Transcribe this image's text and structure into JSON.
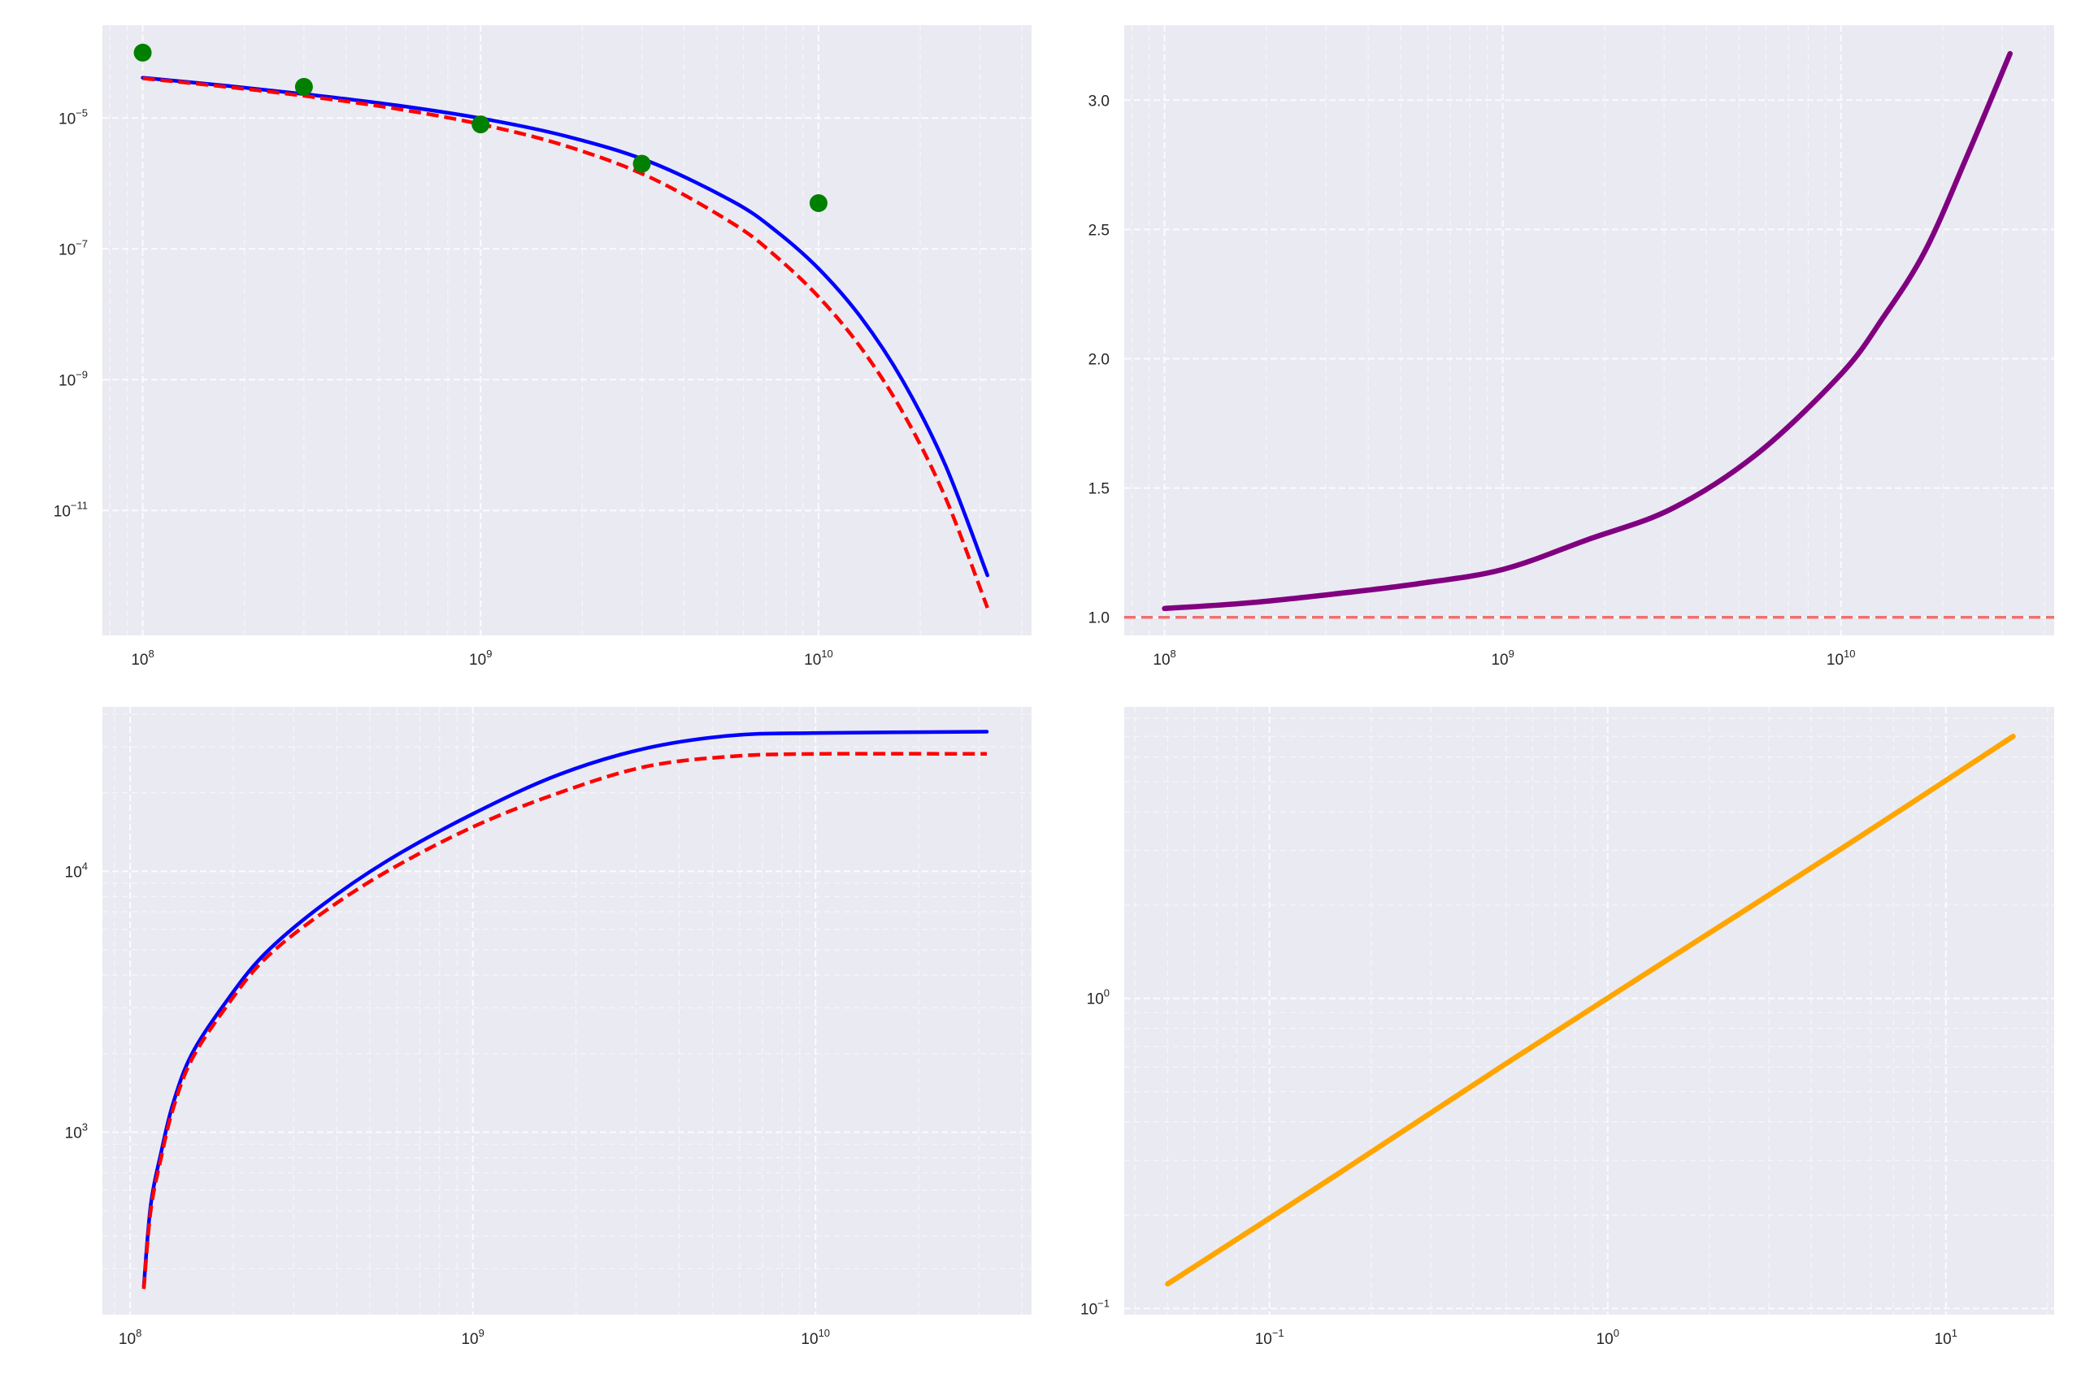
{
  "colors": {
    "axes_background": "#EAEAF2",
    "grid": "#FFFFFF",
    "tick_label": "#262626"
  },
  "chart_data": [
    {
      "type": "line",
      "panel": "top-left",
      "xscale": "log",
      "yscale": "log",
      "xlim": [
        76000000.0,
        42700000000.0
      ],
      "ylim": [
        1.23e-13,
        0.000263
      ],
      "grid": true,
      "xticks": [
        {
          "value": 100000000.0,
          "base": "10",
          "exp": "8"
        },
        {
          "value": 1000000000.0,
          "base": "10",
          "exp": "9"
        },
        {
          "value": 10000000000.0,
          "base": "10",
          "exp": "10"
        }
      ],
      "yticks": [
        {
          "value": 1e-05,
          "base": "10",
          "exp": "−5"
        },
        {
          "value": 1e-07,
          "base": "10",
          "exp": "−7"
        },
        {
          "value": 1e-09,
          "base": "10",
          "exp": "−9"
        },
        {
          "value": 1e-11,
          "base": "10",
          "exp": "−11"
        }
      ],
      "series": [
        {
          "style": "solid",
          "color": "#0000FF",
          "x": [
            100000000.0,
            177800000.0,
            316200000.0,
            562300000.0,
            1000000000.0,
            1778000000.0,
            3162000000.0,
            5623000000.0,
            7500000000.0,
            10000000000.0,
            13340000000.0,
            17780000000.0,
            23710000000.0,
            31620000000.0
          ],
          "y": [
            4.14e-05,
            3.11e-05,
            2.26e-05,
            1.57e-05,
            9.93e-06,
            5.33e-06,
            2.15e-06,
            5.18e-07,
            1.86e-07,
            5e-08,
            9e-09,
            9.5e-10,
            5e-11,
            1.02e-12
          ]
        },
        {
          "style": "dashed",
          "color": "#FF0000",
          "x": [
            100000000.0,
            177800000.0,
            316200000.0,
            562300000.0,
            1000000000.0,
            1778000000.0,
            3162000000.0,
            5623000000.0,
            7500000000.0,
            10000000000.0,
            13340000000.0,
            17780000000.0,
            23710000000.0,
            31620000000.0
          ],
          "y": [
            4.05e-05,
            2.99e-05,
            2.11e-05,
            1.39e-05,
            8.05e-06,
            3.78e-06,
            1.25e-06,
            2.38e-07,
            7.6e-08,
            1.85e-08,
            3.1e-09,
            3.12e-10,
            1.6e-11,
            3.24e-13
          ]
        },
        {
          "style": "markers",
          "color": "#008000",
          "x": [
            100000000.0,
            300000000.0,
            1000000000.0,
            3000000000.0,
            10000000000.0
          ],
          "y": [
            0.0001,
            3e-05,
            8e-06,
            2e-06,
            5e-07
          ]
        }
      ]
    },
    {
      "type": "line",
      "panel": "top-right",
      "xscale": "log",
      "yscale": "linear",
      "xlim": [
        76000000.0,
        42700000000.0
      ],
      "ylim": [
        0.93,
        3.29
      ],
      "grid": true,
      "xticks": [
        {
          "value": 100000000.0,
          "base": "10",
          "exp": "8"
        },
        {
          "value": 1000000000.0,
          "base": "10",
          "exp": "9"
        },
        {
          "value": 10000000000.0,
          "base": "10",
          "exp": "10"
        }
      ],
      "yticks": [
        {
          "value": 1.0,
          "label": "1.0"
        },
        {
          "value": 1.5,
          "label": "1.5"
        },
        {
          "value": 2.0,
          "label": "2.0"
        },
        {
          "value": 2.5,
          "label": "2.5"
        },
        {
          "value": 3.0,
          "label": "3.0"
        }
      ],
      "hline": {
        "y": 1.0,
        "color": "#F07070",
        "style": "dashed"
      },
      "series": [
        {
          "style": "solid",
          "color": "#800080",
          "x": [
            100000000.0,
            177800000.0,
            316200000.0,
            562300000.0,
            1000000000.0,
            1778000000.0,
            3162000000.0,
            5623000000.0,
            10000000000.0,
            13340000000.0,
            17780000000.0,
            23710000000.0,
            31620000000.0
          ],
          "y": [
            1.034,
            1.056,
            1.09,
            1.13,
            1.185,
            1.3,
            1.42,
            1.63,
            1.94,
            2.16,
            2.42,
            2.79,
            3.18
          ]
        }
      ]
    },
    {
      "type": "line",
      "panel": "bottom-left",
      "xscale": "log",
      "yscale": "log",
      "xlim": [
        83000000.0,
        42700000000.0
      ],
      "ylim": [
        200,
        42658
      ],
      "grid": true,
      "xticks": [
        {
          "value": 100000000.0,
          "base": "10",
          "exp": "8"
        },
        {
          "value": 1000000000.0,
          "base": "10",
          "exp": "9"
        },
        {
          "value": 10000000000.0,
          "base": "10",
          "exp": "10"
        }
      ],
      "yticks": [
        {
          "value": 1000.0,
          "base": "10",
          "exp": "3"
        },
        {
          "value": 10000.0,
          "base": "10",
          "exp": "4"
        }
      ],
      "series": [
        {
          "style": "solid",
          "color": "#0000FF",
          "x": [
            109600000.0,
            114800000.0,
            123000000.0,
            133400000.0,
            151400000.0,
            190500000.0,
            245500000.0,
            354800000.0,
            562300000.0,
            1000000000.0,
            1778000000.0,
            3162000000.0,
            5623000000.0,
            10000000000.0,
            31620000000.0
          ],
          "y": [
            257,
            525,
            832,
            1288,
            1995,
            3162,
            4786,
            7244,
            10965,
            16596,
            23442,
            29512,
            33113,
            33884,
            34277
          ]
        },
        {
          "style": "dashed",
          "color": "#FF0000",
          "x": [
            109600000.0,
            114800000.0,
            123000000.0,
            133400000.0,
            151400000.0,
            190500000.0,
            245500000.0,
            354800000.0,
            562300000.0,
            1000000000.0,
            1778000000.0,
            3162000000.0,
            5623000000.0,
            10000000000.0,
            31620000000.0
          ],
          "y": [
            251,
            501,
            794,
            1230,
            1905,
            3020,
            4571,
            6761,
            10000,
            14791,
            19953,
            25119,
            27542,
            28184,
            28184
          ]
        }
      ]
    },
    {
      "type": "line",
      "panel": "bottom-right",
      "xscale": "log",
      "yscale": "log",
      "xlim": [
        0.0372,
        20.9
      ],
      "ylim": [
        0.0955,
        8.71
      ],
      "grid": true,
      "xticks": [
        {
          "value": 0.1,
          "base": "10",
          "exp": "−1"
        },
        {
          "value": 1,
          "base": "10",
          "exp": "0"
        },
        {
          "value": 10,
          "base": "10",
          "exp": "1"
        }
      ],
      "yticks": [
        {
          "value": 0.1,
          "base": "10",
          "exp": "−1"
        },
        {
          "value": 1,
          "base": "10",
          "exp": "0"
        }
      ],
      "series": [
        {
          "style": "solid",
          "color": "#FFA500",
          "x": [
            0.05,
            0.158,
            0.5,
            1.58,
            5.0,
            15.8
          ],
          "y": [
            0.12,
            0.27,
            0.616,
            1.38,
            3.08,
            7.0
          ]
        }
      ]
    }
  ]
}
